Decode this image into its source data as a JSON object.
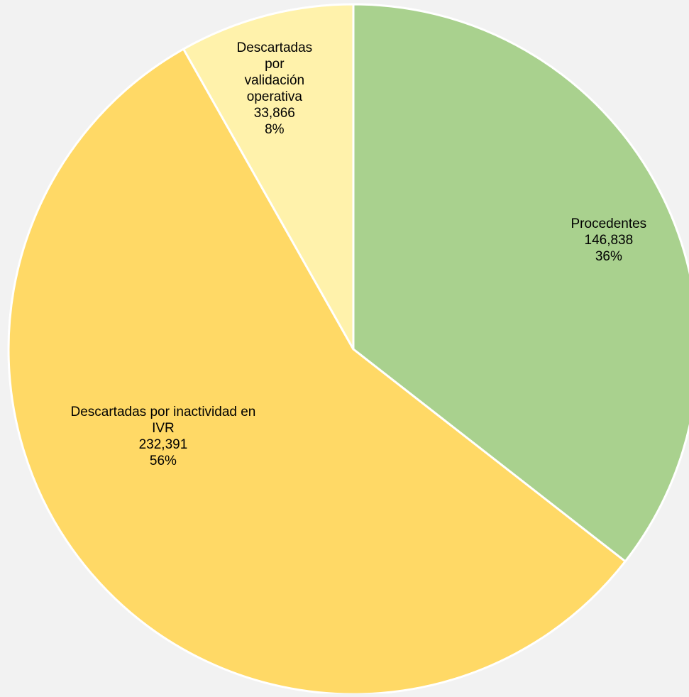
{
  "chart_data": {
    "type": "pie",
    "slices": [
      {
        "label_lines": [
          "Procedentes"
        ],
        "value": 146838,
        "value_text": "146,838",
        "percent_text": "36%",
        "color": "#a9d18e"
      },
      {
        "label_lines": [
          "Descartadas por inactividad en",
          "IVR"
        ],
        "value": 232391,
        "value_text": "232,391",
        "percent_text": "56%",
        "color": "#ffd966"
      },
      {
        "label_lines": [
          "Descartadas",
          "por",
          "validación",
          "operativa"
        ],
        "value": 33866,
        "value_text": "33,866",
        "percent_text": "8%",
        "color": "#fff2ab"
      }
    ],
    "start_angle": "12 o'clock",
    "direction": "clockwise",
    "slice_border_color": "#ffffff",
    "background_color": "#f2f2f2",
    "legend": "none",
    "data_labels": "category, value, percentage"
  }
}
